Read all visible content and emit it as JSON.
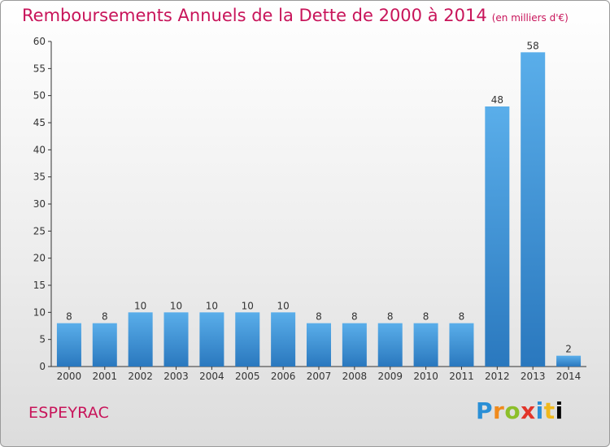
{
  "chart_data": {
    "type": "bar",
    "title": "Remboursements Annuels de la Dette de 2000 à 2014",
    "unit_note": "(en milliers d'€)",
    "categories": [
      "2000",
      "2001",
      "2002",
      "2003",
      "2004",
      "2005",
      "2006",
      "2007",
      "2008",
      "2009",
      "2010",
      "2011",
      "2012",
      "2013",
      "2014"
    ],
    "values": [
      8,
      8,
      10,
      10,
      10,
      10,
      10,
      8,
      8,
      8,
      8,
      8,
      48,
      58,
      2
    ],
    "ylim": [
      0,
      60
    ],
    "yticks": [
      0,
      5,
      10,
      15,
      20,
      25,
      30,
      35,
      40,
      45,
      50,
      55,
      60
    ],
    "xlabel": "",
    "ylabel": "",
    "grid": false,
    "bar_color": "#3d8fd8"
  },
  "commune": "ESPEYRAC",
  "brand": {
    "letters": [
      "P",
      "r",
      "o",
      "x",
      "i",
      "t",
      "i"
    ]
  }
}
